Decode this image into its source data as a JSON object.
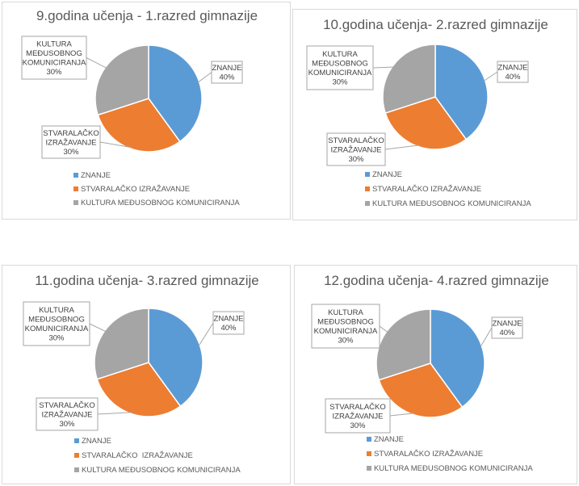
{
  "chart_data": [
    {
      "type": "pie",
      "title": "9.godina učenja - 1.razred gimnazije",
      "categories": [
        "ZNANJE",
        "STVARALAČKO IZRAŽAVANJE",
        "KULTURA MEĐUSOBNOG KOMUNICIRANJA"
      ],
      "values": [
        40,
        30,
        30
      ],
      "value_labels": [
        "40%",
        "30%",
        "30%"
      ],
      "data_label_lines": [
        [
          "ZNANJE"
        ],
        [
          "STVARALAČKO",
          "IZRAŽAVANJE"
        ],
        [
          "KULTURA",
          "MEĐUSOBNOG",
          "KOMUNICIRANJA"
        ]
      ],
      "legend_labels": [
        "ZNANJE",
        "STVARALAČKO IZRAŽAVANJE",
        "KULTURA MEĐUSOBNOG KOMUNICIRANJA"
      ],
      "legend_position": "bottom",
      "colors": [
        "#5b9bd5",
        "#ed7d31",
        "#a5a5a5"
      ]
    },
    {
      "type": "pie",
      "title": "10.godina učenja- 2.razred gimnazije",
      "categories": [
        "ZNANJE",
        "STVARALAČKO IZRAŽAVANJE",
        "KULTURA MEĐUSOBNOG KOMUNICIRANJA"
      ],
      "values": [
        40,
        30,
        30
      ],
      "value_labels": [
        "40%",
        "30%",
        "30%"
      ],
      "data_label_lines": [
        [
          "ZNANJE"
        ],
        [
          "STVARALAČKO",
          "IZRAŽAVANJE"
        ],
        [
          "KULTURA",
          "MEĐUSOBNOG",
          "KOMUNICIRANJA"
        ]
      ],
      "legend_labels": [
        "ZNANJE",
        "STVARALAČKO IZRAŽAVANJE",
        "KULTURA MEĐUSOBNOG KOMUNICIRANJA"
      ],
      "legend_position": "bottom",
      "colors": [
        "#5b9bd5",
        "#ed7d31",
        "#a5a5a5"
      ]
    },
    {
      "type": "pie",
      "title": "11.godina učenja- 3.razred gimnazije",
      "categories": [
        "ZNANJE",
        "STVARALAČKO IZRAŽAVANJE",
        "KULTURA MEĐUSOBNOG KOMUNICIRANJA"
      ],
      "values": [
        40,
        30,
        30
      ],
      "value_labels": [
        "40%",
        "30%",
        "30%"
      ],
      "data_label_lines": [
        [
          "ZNANJE"
        ],
        [
          "STVARALAČKO",
          "IZRAŽAVANJE"
        ],
        [
          "KULTURA",
          "MEĐUSOBNOG",
          "KOMUNICIRANJA"
        ]
      ],
      "legend_labels": [
        "ZNANJE",
        "STVARALAČKO  IZRAŽAVANJE",
        "KULTURA MEĐUSOBNOG KOMUNICIRANJA"
      ],
      "legend_position": "bottom",
      "colors": [
        "#5b9bd5",
        "#ed7d31",
        "#a5a5a5"
      ]
    },
    {
      "type": "pie",
      "title": "12.godina učenja- 4.razred gimnazije",
      "categories": [
        "ZNANJE",
        "STVARALAČKO IZRAŽAVANJE",
        "KULTURA MEĐUSOBNOG KOMUNICIRANJA"
      ],
      "values": [
        40,
        30,
        30
      ],
      "value_labels": [
        "40%",
        "30%",
        "30%"
      ],
      "data_label_lines": [
        [
          "ZNANJE"
        ],
        [
          "STVARALAČKO",
          "IZRAŽAVANJE"
        ],
        [
          "KULTURA",
          "MEĐUSOBNOG",
          "KOMUNICIRANJA"
        ]
      ],
      "legend_labels": [
        "ZNANJE",
        "STVARALAČKO IZRAŽAVANJE",
        "KULTURA MEĐUSOBNOG KOMUNICIRANJA"
      ],
      "legend_position": "bottom",
      "colors": [
        "#5b9bd5",
        "#ed7d31",
        "#a5a5a5"
      ]
    }
  ]
}
